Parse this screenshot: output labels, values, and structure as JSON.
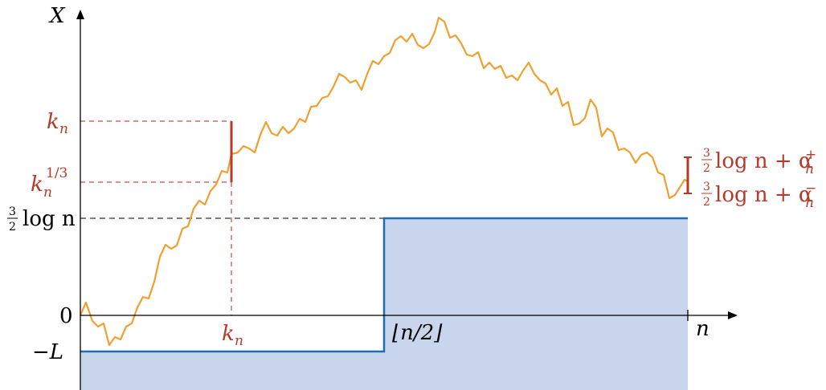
{
  "colors": {
    "walk": "#F0A030",
    "barrier": "#1A6FB0",
    "region": "#C9D5EC",
    "marker": "#B53A2A",
    "guide_black": "#333333",
    "guide_red": "#C0504A"
  },
  "axes": {
    "y_label": "X",
    "x_label": "n"
  },
  "y_labels": {
    "zero": "0",
    "neg_L": "−L",
    "k_n": "k",
    "k_n_sub": "n",
    "k_n_third": "k",
    "k_n_third_sub": "n",
    "k_n_third_sup": "1/3",
    "three_halves_num": "3",
    "three_halves_den": "2",
    "log_n": "log n"
  },
  "x_labels": {
    "k_n": "k",
    "k_n_sub": "n",
    "half_n": "⌊n/2⌋"
  },
  "right_labels": {
    "upper": {
      "num": "3",
      "den": "2",
      "log": "log n + α",
      "sup": "+",
      "sub": "n"
    },
    "lower": {
      "num": "3",
      "den": "2",
      "log": "log n + α",
      "sup": "−",
      "sub": "n"
    }
  }
}
